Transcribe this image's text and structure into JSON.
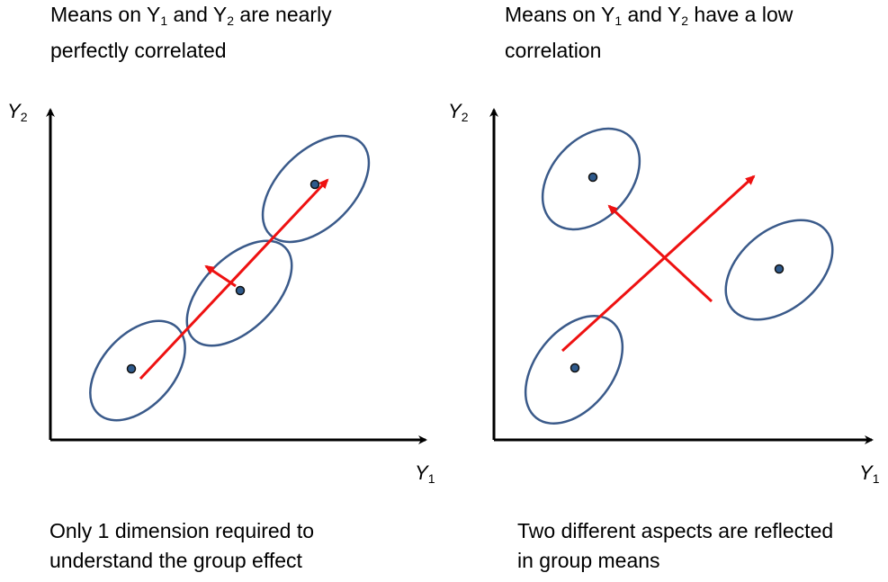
{
  "left_panel": {
    "title": {
      "line1_pre": "Means on Y",
      "line1_sub1": "1",
      "line1_mid": " and Y",
      "line1_sub2": "2",
      "line1_post": " are nearly",
      "line2": "perfectly correlated"
    },
    "note": {
      "line1": "Only 1 dimension required to",
      "line2": "understand the group effect"
    },
    "y_axis": {
      "label": "Y",
      "sub": "2"
    },
    "x_axis": {
      "label": "Y",
      "sub": "1"
    }
  },
  "right_panel": {
    "title": {
      "line1_pre": "Means on Y",
      "line1_sub1": "1",
      "line1_mid": " and Y",
      "line1_sub2": "2",
      "line1_post": " have a low",
      "line2": "correlation"
    },
    "note": {
      "line1": "Two different aspects are reflected",
      "line2": "in group means"
    },
    "y_axis": {
      "label": "Y",
      "sub": "2"
    },
    "x_axis": {
      "label": "Y",
      "sub": "1"
    }
  },
  "colors": {
    "ellipse": "#3a5a8a",
    "arrow": "#ee1111",
    "dot_fill": "#2e5a8c",
    "axis": "#000000"
  }
}
